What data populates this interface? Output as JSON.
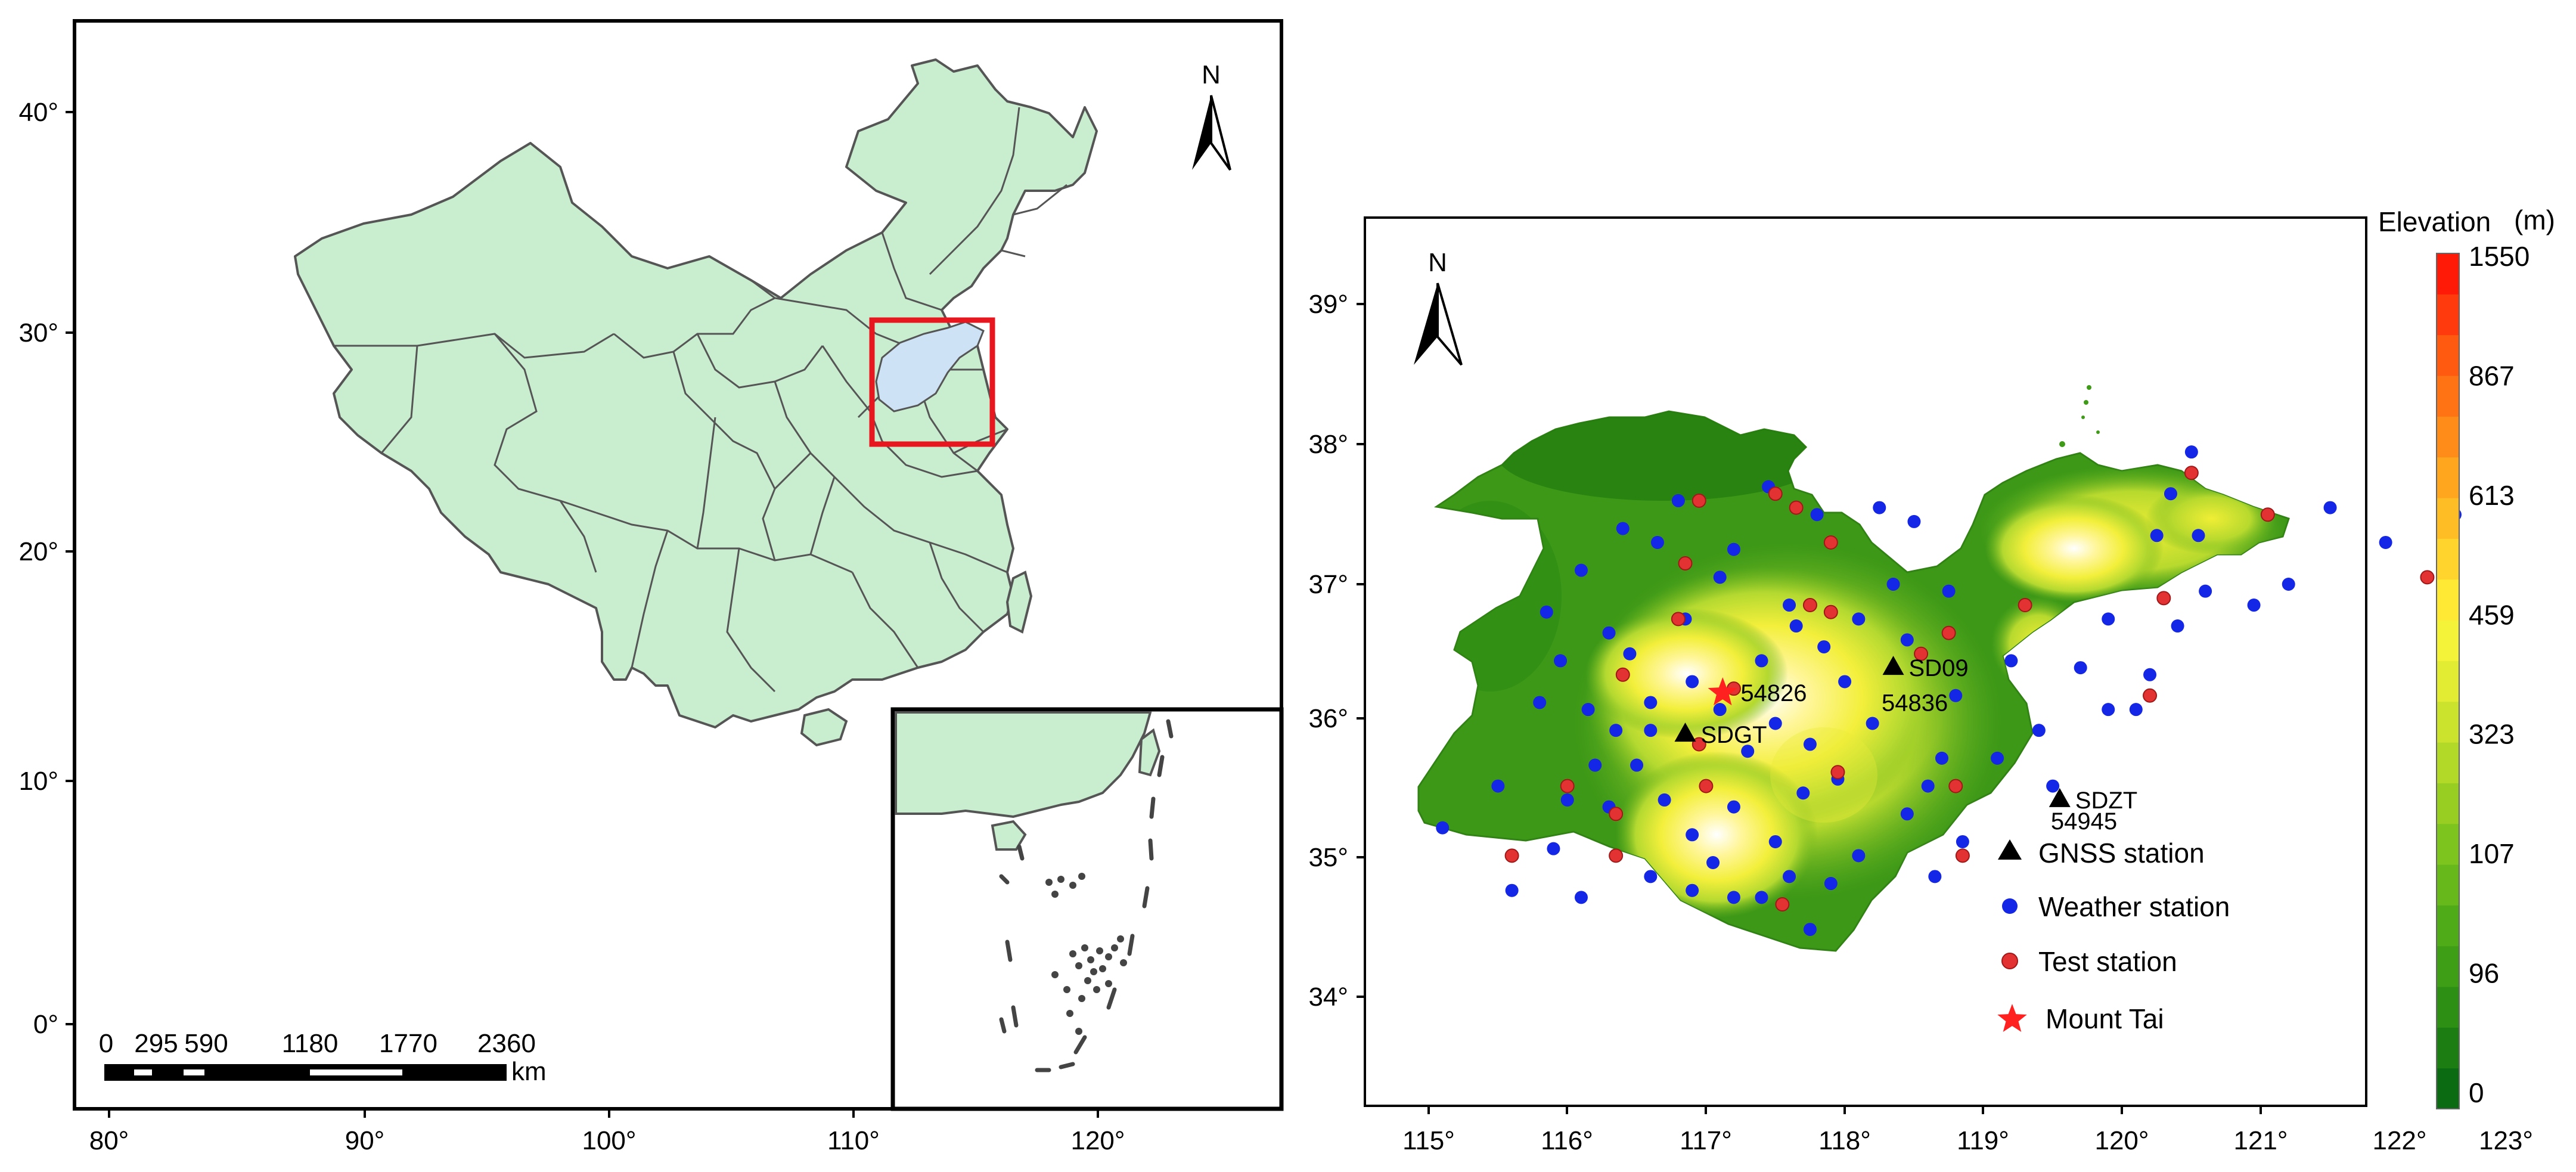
{
  "left_map": {
    "lat_ticks": [
      "40°",
      "30°",
      "20°",
      "10°",
      "0°"
    ],
    "lon_ticks": [
      "80°",
      "90°",
      "100°",
      "110°",
      "120°"
    ],
    "north_label": "N",
    "scale_labels": [
      "0",
      "295",
      "590",
      "1180",
      "1770",
      "2360"
    ],
    "scale_unit": "km"
  },
  "right_map": {
    "lat_ticks": [
      "39°",
      "38°",
      "37°",
      "36°",
      "35°",
      "34°"
    ],
    "lon_ticks": [
      "115°",
      "116°",
      "117°",
      "118°",
      "119°",
      "120°",
      "121°",
      "122°",
      "123°"
    ],
    "north_label": "N",
    "gnss_stations": [
      {
        "label": "SD09",
        "lon": 118.35,
        "lat": 36.4
      },
      {
        "label": "SDGT",
        "lon": 116.85,
        "lat": 35.92
      },
      {
        "label": "SDZT",
        "lon": 119.55,
        "lat": 35.45
      }
    ],
    "weather_labels": [
      {
        "label": "54836",
        "lon": 118.18,
        "lat": 36.15
      },
      {
        "label": "54945",
        "lon": 119.4,
        "lat": 35.3
      }
    ],
    "mount_tai": {
      "label": "54826",
      "lon": 117.12,
      "lat": 36.22
    },
    "weather_stations": [
      [
        115.1,
        35.25
      ],
      [
        115.5,
        35.55
      ],
      [
        115.6,
        34.8
      ],
      [
        115.9,
        35.1
      ],
      [
        116.1,
        34.75
      ],
      [
        116.3,
        35.4
      ],
      [
        116.6,
        34.9
      ],
      [
        116.9,
        34.8
      ],
      [
        117.2,
        34.75
      ],
      [
        117.4,
        34.75
      ],
      [
        117.6,
        34.9
      ],
      [
        117.9,
        34.85
      ],
      [
        118.1,
        35.05
      ],
      [
        118.45,
        35.35
      ],
      [
        118.7,
        35.75
      ],
      [
        118.85,
        35.15
      ],
      [
        118.65,
        34.9
      ],
      [
        119.1,
        35.75
      ],
      [
        119.4,
        35.95
      ],
      [
        119.7,
        36.4
      ],
      [
        119.9,
        36.1
      ],
      [
        120.1,
        36.1
      ],
      [
        120.2,
        36.35
      ],
      [
        120.4,
        36.7
      ],
      [
        120.6,
        36.95
      ],
      [
        120.25,
        37.35
      ],
      [
        120.55,
        37.35
      ],
      [
        120.95,
        36.85
      ],
      [
        121.2,
        37.0
      ],
      [
        121.5,
        37.55
      ],
      [
        121.9,
        37.3
      ],
      [
        122.4,
        37.5
      ],
      [
        120.35,
        37.65
      ],
      [
        119.9,
        36.75
      ],
      [
        119.2,
        36.45
      ],
      [
        118.75,
        36.95
      ],
      [
        118.5,
        37.45
      ],
      [
        118.25,
        37.55
      ],
      [
        117.8,
        37.5
      ],
      [
        117.45,
        37.7
      ],
      [
        117.2,
        37.25
      ],
      [
        117.1,
        37.05
      ],
      [
        116.8,
        37.6
      ],
      [
        116.65,
        37.3
      ],
      [
        116.4,
        37.4
      ],
      [
        116.1,
        37.1
      ],
      [
        115.85,
        36.8
      ],
      [
        115.8,
        36.15
      ],
      [
        115.95,
        36.45
      ],
      [
        116.15,
        36.1
      ],
      [
        116.35,
        35.95
      ],
      [
        116.5,
        35.7
      ],
      [
        116.7,
        35.45
      ],
      [
        116.9,
        35.2
      ],
      [
        117.05,
        35.0
      ],
      [
        117.2,
        35.4
      ],
      [
        117.5,
        35.15
      ],
      [
        117.7,
        35.5
      ],
      [
        117.95,
        35.6
      ],
      [
        117.75,
        35.85
      ],
      [
        118.0,
        36.3
      ],
      [
        117.85,
        36.55
      ],
      [
        118.1,
        36.75
      ],
      [
        118.35,
        37.0
      ],
      [
        118.45,
        36.6
      ],
      [
        118.2,
        36.0
      ],
      [
        117.5,
        36.0
      ],
      [
        117.3,
        35.8
      ],
      [
        117.1,
        36.1
      ],
      [
        116.9,
        36.3
      ],
      [
        116.6,
        36.15
      ],
      [
        116.45,
        36.5
      ],
      [
        116.3,
        36.65
      ],
      [
        116.85,
        36.75
      ],
      [
        116.0,
        35.45
      ],
      [
        116.6,
        35.95
      ],
      [
        116.2,
        35.7
      ],
      [
        117.6,
        36.85
      ],
      [
        117.4,
        36.45
      ],
      [
        119.5,
        35.55
      ],
      [
        118.8,
        36.2
      ],
      [
        118.6,
        35.55
      ],
      [
        117.75,
        34.52
      ],
      [
        120.5,
        37.95
      ],
      [
        117.65,
        36.7
      ]
    ],
    "test_stations": [
      [
        115.6,
        35.05
      ],
      [
        116.0,
        35.55
      ],
      [
        116.35,
        35.05
      ],
      [
        116.35,
        35.35
      ],
      [
        116.4,
        36.35
      ],
      [
        116.85,
        37.15
      ],
      [
        116.8,
        36.75
      ],
      [
        117.0,
        35.55
      ],
      [
        117.5,
        37.65
      ],
      [
        117.65,
        37.55
      ],
      [
        117.9,
        37.3
      ],
      [
        117.55,
        34.7
      ],
      [
        117.95,
        35.65
      ],
      [
        117.75,
        36.85
      ],
      [
        117.9,
        36.8
      ],
      [
        118.55,
        36.5
      ],
      [
        118.75,
        36.65
      ],
      [
        118.8,
        35.55
      ],
      [
        118.85,
        35.05
      ],
      [
        119.3,
        36.85
      ],
      [
        120.2,
        36.2
      ],
      [
        120.3,
        36.9
      ],
      [
        120.5,
        37.8
      ],
      [
        121.05,
        37.5
      ],
      [
        122.2,
        37.05
      ],
      [
        116.95,
        35.85
      ],
      [
        116.95,
        37.6
      ],
      [
        117.2,
        36.25
      ]
    ],
    "legend": [
      {
        "symbol": "triangle",
        "label": "GNSS station"
      },
      {
        "symbol": "blue-dot",
        "label": "Weather station"
      },
      {
        "symbol": "red-dot",
        "label": "Test station"
      },
      {
        "symbol": "star",
        "label": "Mount Tai"
      }
    ]
  },
  "colorbar": {
    "title": "Elevation",
    "unit": "(m)",
    "labels": [
      "1550",
      "867",
      "613",
      "459",
      "323",
      "107",
      "96",
      "0"
    ],
    "colors": [
      "#0b6b12",
      "#1c7d12",
      "#2d8f14",
      "#3e9f16",
      "#50ab18",
      "#66b81b",
      "#7ec41e",
      "#98ce22",
      "#b2d928",
      "#cbe32d",
      "#e2ec33",
      "#f5f339",
      "#ffe934",
      "#ffd42c",
      "#ffbd25",
      "#ffa51e",
      "#ff8c18",
      "#ff7314",
      "#ff5a10",
      "#ff3a0c",
      "#ff1a08"
    ]
  },
  "colors": {
    "land_china": "#c9edcf",
    "shandong_fill": "#cde3f5",
    "highlight_box": "#e8161e",
    "gnss": "#000000",
    "weather": "#1426e6",
    "test": "#e33232",
    "star": "#ff2020"
  }
}
